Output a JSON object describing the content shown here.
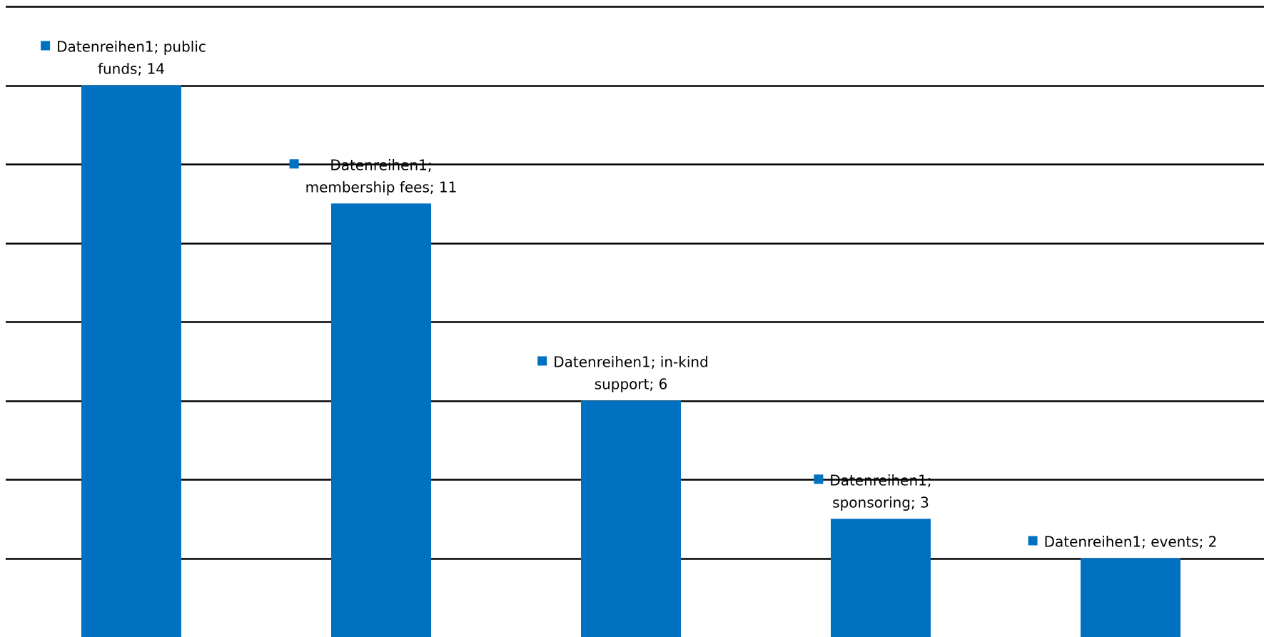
{
  "chart_data": {
    "type": "bar",
    "categories": [
      "public funds",
      "membership fees",
      "in-kind support",
      "sponsoring",
      "events"
    ],
    "series": [
      {
        "name": "Datenreihen1",
        "values": [
          14,
          11,
          6,
          3,
          2
        ]
      }
    ],
    "data_labels": [
      [
        "Datenreihen1; public",
        "funds; 14"
      ],
      [
        "Datenreihen1;",
        "membership fees; 11"
      ],
      [
        "Datenreihen1; in-kind",
        "support; 6"
      ],
      [
        "Datenreihen1;",
        "sponsoring; 3"
      ],
      [
        "Datenreihen1; events; 2"
      ]
    ],
    "ylim": [
      0,
      16
    ],
    "grid": true,
    "colors": {
      "bar": "#0070C0",
      "gridline": "#000000",
      "legend_key": "#0070C0"
    }
  }
}
